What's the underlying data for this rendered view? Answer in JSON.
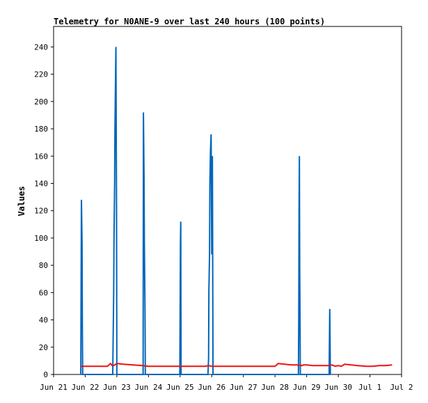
{
  "chart_data": {
    "type": "line",
    "title": "Telemetry for N0ANE-9 over last 240 hours (100 points)",
    "ylabel": "Values",
    "xlabel": "",
    "x_unit": "day of June 2025 (Jul 1 = 31, Jul 2 = 32)",
    "xlim": [
      21,
      32
    ],
    "ylim": [
      0,
      255
    ],
    "y_ticks": [
      0,
      20,
      40,
      60,
      80,
      100,
      120,
      140,
      160,
      180,
      200,
      220,
      240
    ],
    "x_ticks": [
      {
        "x": 21,
        "label": "Jun 21"
      },
      {
        "x": 22,
        "label": "Jun 22"
      },
      {
        "x": 23,
        "label": "Jun 23"
      },
      {
        "x": 24,
        "label": "Jun 24"
      },
      {
        "x": 25,
        "label": "Jun 25"
      },
      {
        "x": 26,
        "label": "Jun 26"
      },
      {
        "x": 27,
        "label": "Jun 27"
      },
      {
        "x": 28,
        "label": "Jun 28"
      },
      {
        "x": 29,
        "label": "Jun 29"
      },
      {
        "x": 30,
        "label": "Jun 30"
      },
      {
        "x": 31,
        "label": "Jul 1"
      },
      {
        "x": 32,
        "label": "Jul 2"
      }
    ],
    "grid": false,
    "legend": "none",
    "series": [
      {
        "color": "#0066bb",
        "style": "line",
        "points": [
          [
            21.86,
            0
          ],
          [
            21.87,
            64
          ],
          [
            21.88,
            128
          ],
          [
            21.9,
            96
          ],
          [
            21.91,
            32
          ],
          [
            21.92,
            0
          ],
          [
            22.87,
            0
          ],
          [
            22.88,
            20
          ],
          [
            22.9,
            60
          ],
          [
            22.91,
            100
          ],
          [
            22.93,
            140
          ],
          [
            22.94,
            180
          ],
          [
            22.96,
            220
          ],
          [
            22.97,
            240
          ],
          [
            22.99,
            120
          ],
          [
            23.0,
            0
          ],
          [
            23.83,
            0
          ],
          [
            23.84,
            192
          ],
          [
            23.86,
            144
          ],
          [
            23.87,
            96
          ],
          [
            23.89,
            48
          ],
          [
            23.9,
            0
          ],
          [
            24.99,
            0
          ],
          [
            25.0,
            48
          ],
          [
            25.01,
            96
          ],
          [
            25.02,
            112
          ],
          [
            25.03,
            0
          ],
          [
            25.88,
            0
          ],
          [
            25.9,
            12
          ],
          [
            25.91,
            62
          ],
          [
            25.93,
            88
          ],
          [
            25.94,
            138
          ],
          [
            25.96,
            164
          ],
          [
            25.98,
            176
          ],
          [
            26.0,
            88
          ],
          [
            26.02,
            160
          ],
          [
            26.04,
            0
          ],
          [
            28.74,
            0
          ],
          [
            28.75,
            40
          ],
          [
            28.76,
            120
          ],
          [
            28.77,
            160
          ],
          [
            28.78,
            80
          ],
          [
            28.8,
            0
          ],
          [
            29.71,
            0
          ],
          [
            29.72,
            24
          ],
          [
            29.73,
            48
          ],
          [
            29.74,
            24
          ],
          [
            29.75,
            0
          ]
        ]
      },
      {
        "color": "#ee1111",
        "style": "line",
        "points": [
          [
            21.86,
            6
          ],
          [
            22.0,
            6
          ],
          [
            22.3,
            6
          ],
          [
            22.5,
            6
          ],
          [
            22.7,
            6
          ],
          [
            22.75,
            7
          ],
          [
            22.8,
            8
          ],
          [
            22.85,
            6.5
          ],
          [
            22.9,
            6.5
          ],
          [
            23.0,
            8
          ],
          [
            23.2,
            7.5
          ],
          [
            23.5,
            7
          ],
          [
            23.8,
            6.5
          ],
          [
            24.0,
            6
          ],
          [
            24.5,
            6
          ],
          [
            25.0,
            6
          ],
          [
            25.5,
            6
          ],
          [
            25.8,
            6
          ],
          [
            25.9,
            6.5
          ],
          [
            26.0,
            6
          ],
          [
            26.5,
            6
          ],
          [
            27.0,
            6
          ],
          [
            27.5,
            6
          ],
          [
            28.0,
            6
          ],
          [
            28.05,
            7
          ],
          [
            28.1,
            8
          ],
          [
            28.3,
            7.5
          ],
          [
            28.5,
            7
          ],
          [
            28.7,
            7
          ],
          [
            28.75,
            6.5
          ],
          [
            28.8,
            7
          ],
          [
            28.85,
            6.5
          ],
          [
            28.9,
            7
          ],
          [
            29.0,
            7
          ],
          [
            29.2,
            6.5
          ],
          [
            29.5,
            6.5
          ],
          [
            29.7,
            6.5
          ],
          [
            29.8,
            7
          ],
          [
            29.9,
            6
          ],
          [
            30.0,
            6.5
          ],
          [
            30.1,
            6
          ],
          [
            30.2,
            7.5
          ],
          [
            30.4,
            7
          ],
          [
            30.6,
            6.5
          ],
          [
            30.9,
            6
          ],
          [
            31.1,
            6
          ],
          [
            31.3,
            6.5
          ],
          [
            31.5,
            6.5
          ],
          [
            31.7,
            7
          ]
        ]
      }
    ]
  }
}
